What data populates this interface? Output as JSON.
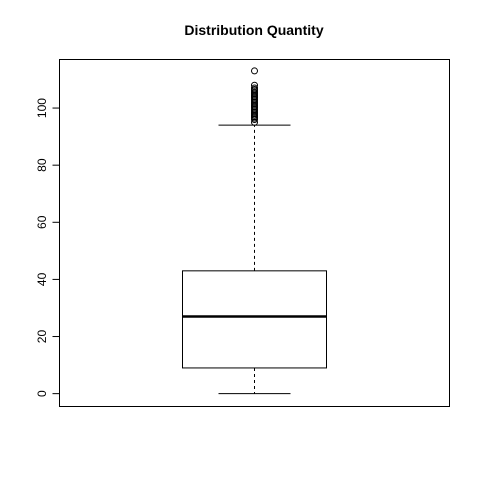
{
  "chart_data": {
    "type": "boxplot",
    "title": "Distribution Quantity",
    "xlabel": "",
    "ylabel": "",
    "ylim": [
      -4.5,
      117
    ],
    "yticks": [
      0,
      20,
      40,
      60,
      80,
      100
    ],
    "grid": false,
    "legend": "none",
    "box": {
      "whisker_low": 0,
      "q1": 9,
      "median": 27,
      "q3": 43,
      "whisker_high": 94
    },
    "outliers": [
      95,
      96,
      96.5,
      97,
      97.5,
      98,
      98.5,
      99,
      99.5,
      100,
      100.5,
      101,
      101.5,
      102,
      102.5,
      103,
      103.5,
      104,
      104.5,
      105,
      105.5,
      106,
      106.5,
      107,
      108,
      113
    ]
  }
}
